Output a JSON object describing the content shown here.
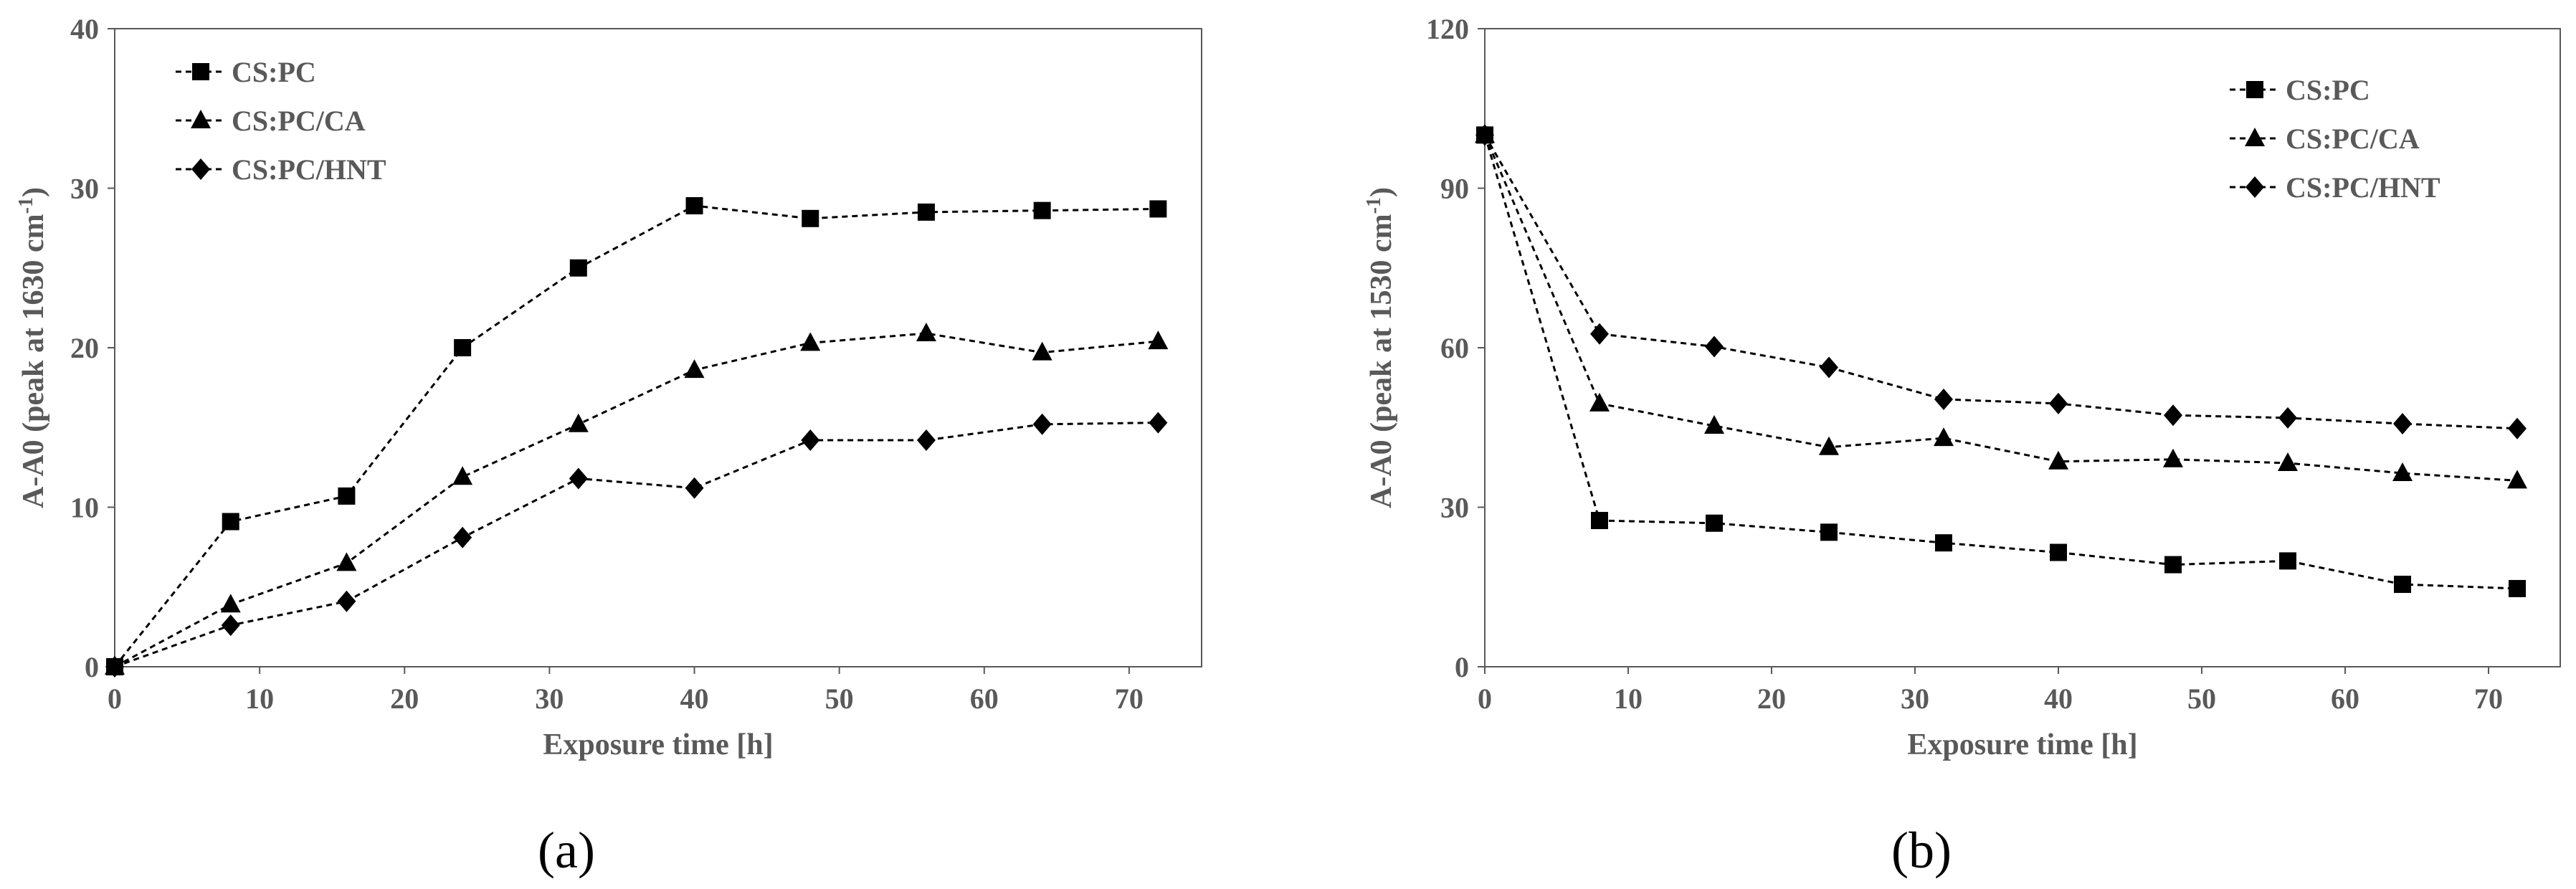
{
  "chart_data": [
    {
      "type": "line",
      "panel_label": "(a)",
      "xlabel": "Exposure time [h]",
      "ylabel_main": "A-A0 (peak at 1630 cm",
      "ylabel_sup": "-1",
      "ylabel_end": ")",
      "xlim": [
        0,
        75
      ],
      "ylim": [
        0,
        40
      ],
      "xticks": [
        "0",
        "10",
        "20",
        "30",
        "40",
        "50",
        "60",
        "70"
      ],
      "yticks": [
        "0",
        "10",
        "20",
        "30",
        "40"
      ],
      "x": [
        0,
        8,
        16,
        24,
        32,
        40,
        48,
        56,
        64,
        72
      ],
      "legend_position": "top-left",
      "series": [
        {
          "name": "CS:PC",
          "marker": "square",
          "values": [
            0,
            9.1,
            10.7,
            20.0,
            25.0,
            28.9,
            28.1,
            28.5,
            28.6,
            28.7
          ]
        },
        {
          "name": "CS:PC/CA",
          "marker": "triangle",
          "values": [
            0,
            3.9,
            6.5,
            11.9,
            15.2,
            18.6,
            20.3,
            20.9,
            19.7,
            20.4
          ]
        },
        {
          "name": "CS:PC/HNT",
          "marker": "diamond",
          "values": [
            0,
            2.6,
            4.1,
            8.1,
            11.8,
            11.2,
            14.2,
            14.2,
            15.2,
            15.3
          ]
        }
      ]
    },
    {
      "type": "line",
      "panel_label": "(b)",
      "xlabel": "Exposure time [h]",
      "ylabel_main": "A-A0 (peak at 1530 cm",
      "ylabel_sup": "-1",
      "ylabel_end": ")",
      "xlim": [
        0,
        75
      ],
      "ylim": [
        0,
        120
      ],
      "xticks": [
        "0",
        "10",
        "20",
        "30",
        "40",
        "50",
        "60",
        "70"
      ],
      "yticks": [
        "0",
        "30",
        "60",
        "90",
        "120"
      ],
      "x": [
        0,
        8,
        16,
        24,
        32,
        40,
        48,
        56,
        64,
        72
      ],
      "legend_position": "top-right",
      "series": [
        {
          "name": "CS:PC",
          "marker": "square",
          "values": [
            100,
            27.5,
            27.0,
            25.3,
            23.3,
            21.5,
            19.2,
            19.9,
            15.5,
            14.7
          ]
        },
        {
          "name": "CS:PC/CA",
          "marker": "triangle",
          "values": [
            100,
            49.5,
            45.3,
            41.3,
            43.0,
            38.6,
            39.0,
            38.3,
            36.4,
            35.0
          ]
        },
        {
          "name": "CS:PC/HNT",
          "marker": "diamond",
          "values": [
            100,
            62.6,
            60.2,
            56.3,
            50.3,
            49.5,
            47.3,
            46.8,
            45.7,
            44.8
          ]
        }
      ]
    }
  ]
}
